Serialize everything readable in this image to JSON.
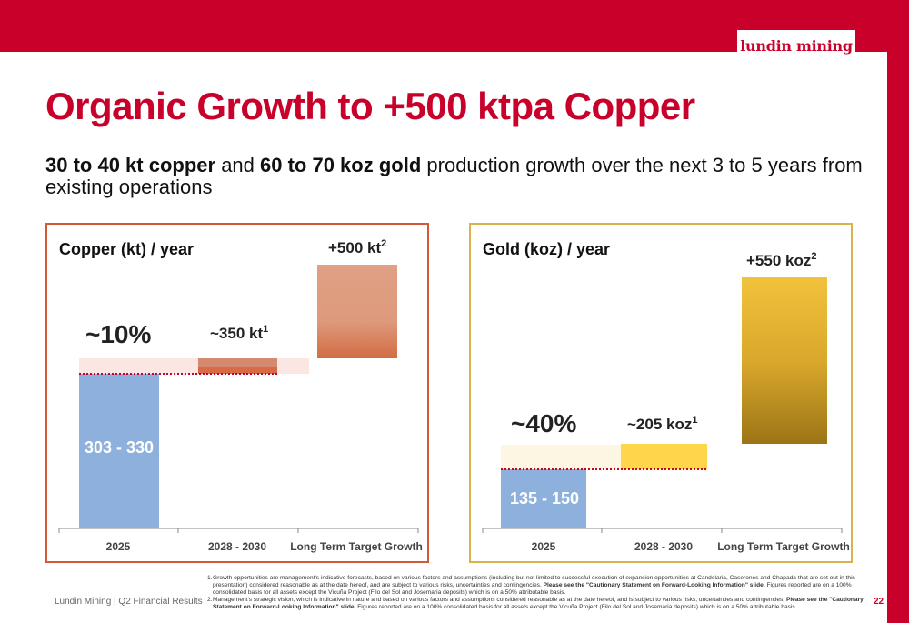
{
  "header": {
    "logo_text": "lundin mining"
  },
  "page": {
    "title": "Organic Growth to +500 ktpa Copper",
    "subtitle": {
      "bold1": "30 to 40 kt copper",
      "mid": " and ",
      "bold2": "60 to 70 koz gold",
      "rest": " production growth over the next 3 to 5 years from existing operations"
    }
  },
  "colors": {
    "brand": "#c8002a",
    "copper_bar": "#8eb0dc",
    "copper_growth": "#d9785a",
    "gold_growth": "#e8b832",
    "gold_increment": "#ffd54a"
  },
  "copper_chart": {
    "title": "Copper (kt) / year",
    "categories": [
      "2025",
      "2028 - 2030",
      "Long Term Target Growth"
    ],
    "base_label": "303 - 330",
    "pct_label": "~10%",
    "increment_label": "~350 kt",
    "increment_sup": "1",
    "target_label": "+500 kt",
    "target_sup": "2"
  },
  "gold_chart": {
    "title": "Gold (koz) / year",
    "categories": [
      "2025",
      "2028 - 2030",
      "Long Term Target Growth"
    ],
    "base_label": "135 - 150",
    "pct_label": "~40%",
    "increment_label": "~205 koz",
    "increment_sup": "1",
    "target_label": "+550 koz",
    "target_sup": "2"
  },
  "chart_data": [
    {
      "type": "bar",
      "title": "Copper (kt) / year",
      "categories": [
        "2025",
        "2028 - 2030",
        "Long Term Target Growth"
      ],
      "labels": [
        "303 - 330",
        "~350 kt",
        "+500 kt"
      ],
      "base_range": [
        303,
        330
      ],
      "growth_percent": 10,
      "target_2028_2030": 350,
      "long_term_target": 500
    },
    {
      "type": "bar",
      "title": "Gold (koz) / year",
      "categories": [
        "2025",
        "2028 - 2030",
        "Long Term Target Growth"
      ],
      "labels": [
        "135 - 150",
        "~205 koz",
        "+550 koz"
      ],
      "base_range": [
        135,
        150
      ],
      "growth_percent": 40,
      "target_2028_2030": 205,
      "long_term_target": 550
    }
  ],
  "footer": {
    "left": "Lundin Mining | Q2 Financial Results",
    "page_number": "22",
    "note1_num": "1.",
    "note1_text": "Growth opportunities are management's indicative forecasts, based on various factors and assumptions (including but not limited to successful execution of expansion opportunities at Candelaria, Caserones and Chapada that are set out in this presentation) considered reasonable as at the date hereof, and are subject to various risks, uncertainties and contingencies. ",
    "note1_bold": "Please see the \"Cautionary Statement on Forward-Looking Information\" slide.",
    "note1_tail": " Figures reported are on a 100% consolidated basis for all assets except the Vicuña Project (Filo del Sol and Josemaria deposits) which is on a 50% attributable basis.",
    "note2_num": "2.",
    "note2_text": "Management's strategic vision, which is indicative in nature and based on various factors and assumptions considered reasonable as at the date hereof, and is subject to various risks, uncertainties and contingencies. ",
    "note2_bold": "Please see the \"Cautionary Statement on Forward-Looking Information\" slide.",
    "note2_tail": " Figures reported are on a 100% consolidated basis for all assets except the Vicuña Project (Filo del Sol and Josemaria deposits) which is on a 50% attributable basis."
  }
}
